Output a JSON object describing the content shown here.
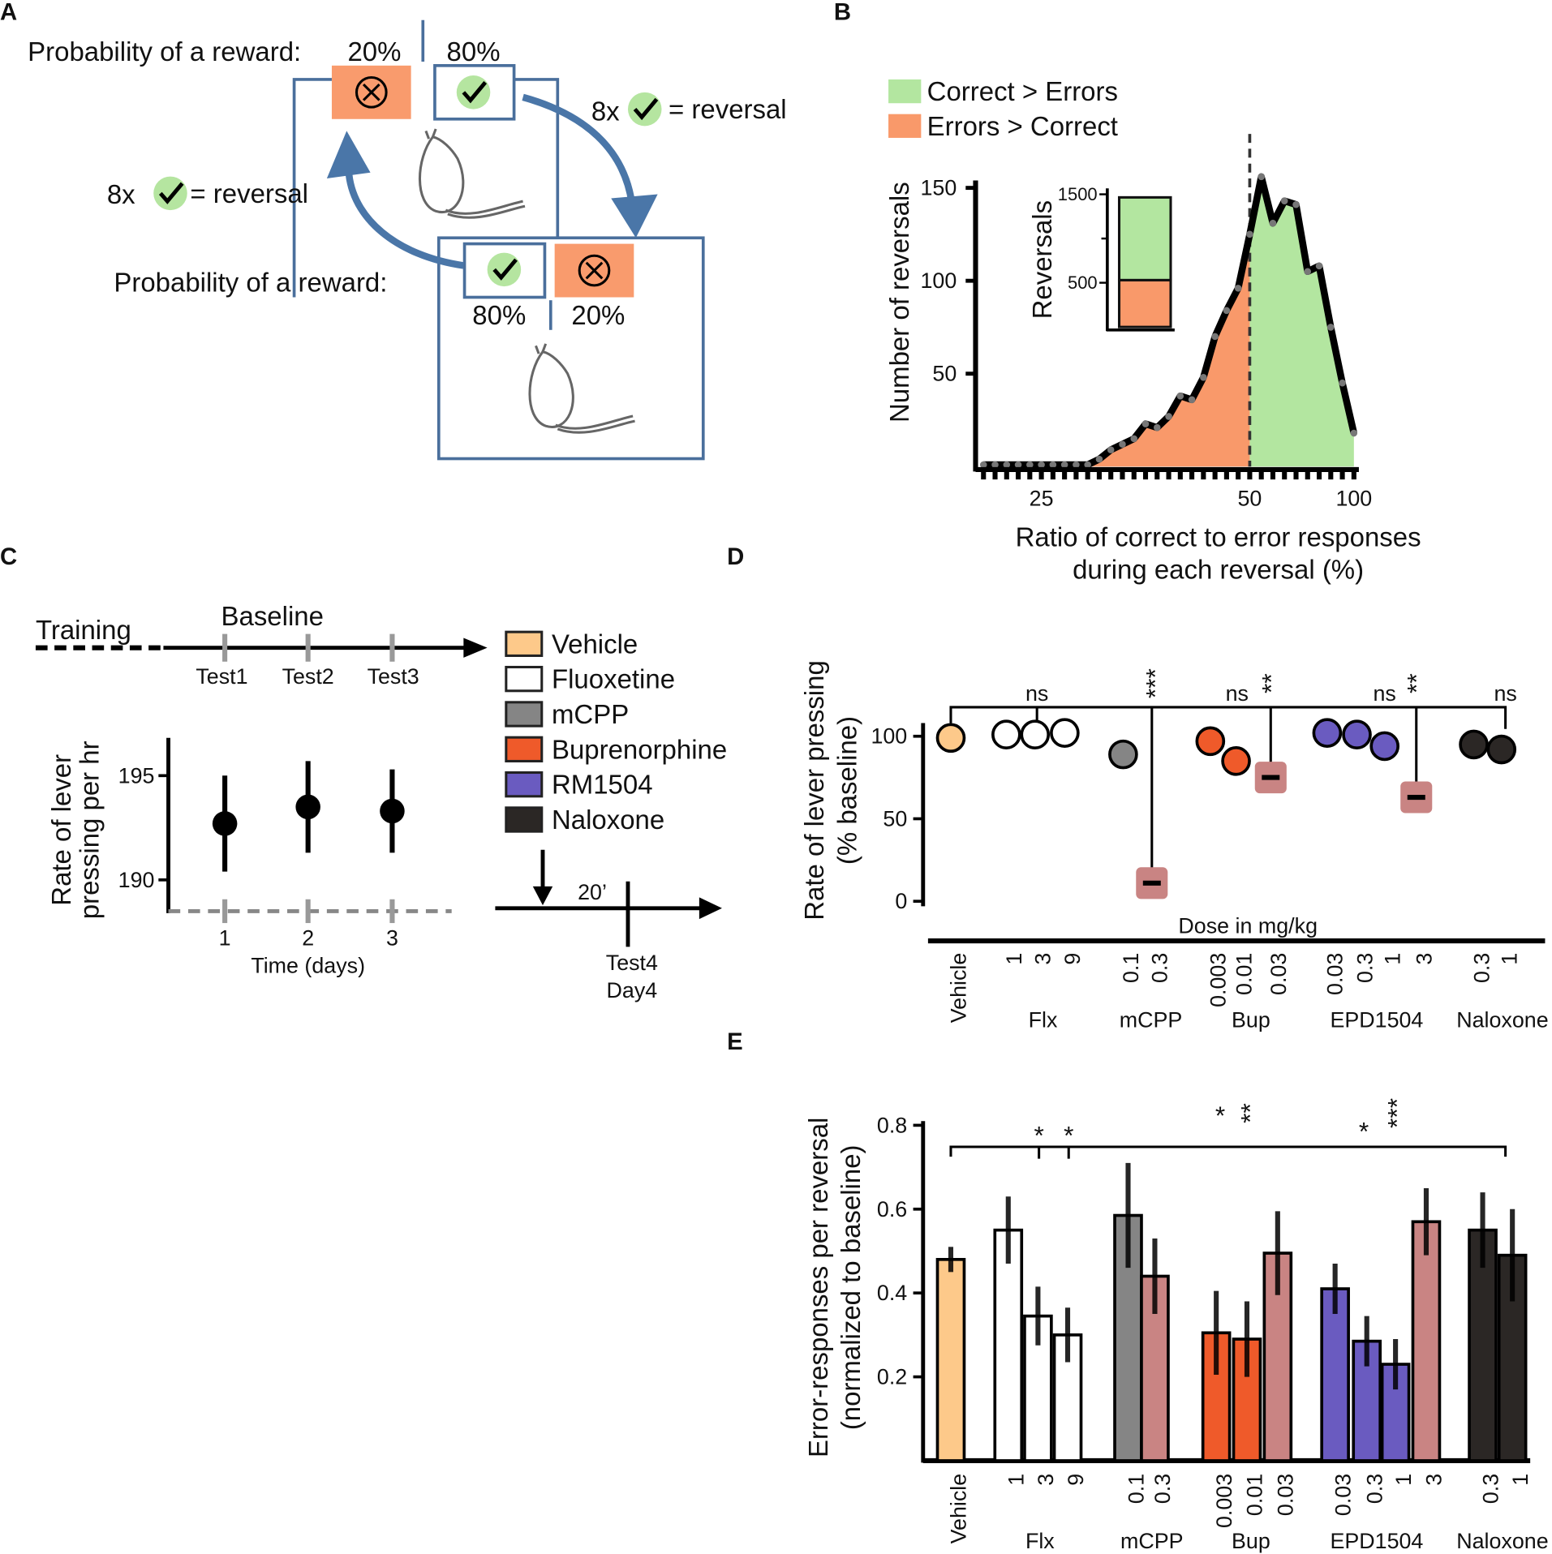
{
  "panel_labels": [
    "A",
    "B",
    "C",
    "D",
    "E"
  ],
  "diagram": {
    "probability_label": [
      "Probability of a reward:",
      "Probability of a reward:"
    ],
    "top_percents": [
      "20%",
      "80%"
    ],
    "bottom_percents": [
      "80%",
      "20%"
    ],
    "reversal_rules": [
      {
        "count": "8x",
        "text": "= reversal"
      },
      {
        "count": "8x",
        "text": "= reversal"
      }
    ]
  },
  "timeline": {
    "phases": [
      "Training",
      "Baseline"
    ],
    "tests": [
      "Test1",
      "Test2",
      "Test3"
    ],
    "delay": "20’",
    "final_test": [
      "Test4",
      "Day4"
    ]
  },
  "legend": [
    {
      "name": "Vehicle",
      "color": "#fdc98a"
    },
    {
      "name": "Fluoxetine",
      "color": "#ffffff"
    },
    {
      "name": "mCPP",
      "color": "#858585"
    },
    {
      "name": "Buprenorphine",
      "color": "#ef5a2a"
    },
    {
      "name": "RM1504",
      "color": "#6a5bc0"
    },
    {
      "name": "Naloxone",
      "color": "#2b2725"
    }
  ],
  "chart_data": [
    {
      "type": "area",
      "xlabel": [
        "Ratio of correct to error responses",
        "during each reversal (%)"
      ],
      "ylabel": "Number of reversals",
      "categories": [
        null,
        null,
        null,
        null,
        null,
        "25",
        null,
        null,
        null,
        null,
        null,
        null,
        null,
        null,
        null,
        null,
        null,
        null,
        null,
        null,
        null,
        null,
        null,
        "50",
        null,
        null,
        null,
        null,
        null,
        null,
        null,
        null,
        "100"
      ],
      "series": [
        {
          "name": "Correct > Errors",
          "color": "#b3e6a0",
          "values": [
            null,
            null,
            null,
            null,
            null,
            null,
            null,
            null,
            null,
            null,
            null,
            null,
            null,
            null,
            null,
            null,
            null,
            null,
            null,
            null,
            null,
            null,
            null,
            125,
            156,
            131,
            143,
            141,
            105,
            108,
            75,
            45,
            18
          ]
        },
        {
          "name": "Errors > Correct",
          "color": "#f9996a",
          "values": [
            1,
            1,
            1,
            1,
            1,
            1,
            1,
            1,
            1,
            1,
            4,
            9,
            12,
            15,
            23,
            21,
            27,
            38,
            36,
            48,
            70,
            84,
            96,
            125,
            null,
            null,
            null,
            null,
            null,
            null,
            null,
            null,
            null
          ]
        }
      ],
      "ylim": [
        0,
        154
      ],
      "yticks": [
        50,
        100,
        150
      ]
    },
    {
      "type": "stacked_bar",
      "ylabel": "Reversals",
      "series": [
        {
          "color": "#f9996a",
          "values": [
            530
          ]
        },
        {
          "color": "#b3e6a0",
          "values": [
            935
          ]
        }
      ],
      "ylim": [
        0,
        1500
      ],
      "yticks": [
        500,
        1500
      ],
      "minor_yticks": [
        1000
      ]
    },
    {
      "type": "errorbar_scatter",
      "xlabel": "Time (days)",
      "ylabel": [
        "Rate of lever",
        "pressing  per hr"
      ],
      "categories": [
        "1",
        "2",
        "3"
      ],
      "values": [
        192.7,
        193.5,
        193.3
      ],
      "errors": [
        2.3,
        2.2,
        2.0
      ],
      "color": "#000000",
      "ylim": [
        188.5,
        197
      ],
      "yticks": [
        190,
        195
      ]
    },
    {
      "type": "dot",
      "xlabel": "Dose in mg/kg",
      "ylabel": [
        "Rate of lever pressing",
        "(% baseline)"
      ],
      "categories": [
        "Vehicle",
        "1",
        "3",
        "9",
        "0.1",
        "0.3",
        "0.003",
        "0.01",
        "0.03",
        "0.03",
        "0.3",
        "1",
        "3",
        "0.3",
        "1"
      ],
      "groups": [
        "Flx",
        "mCPP",
        "Bup",
        "EPD1504",
        "Naloxone"
      ],
      "values": [
        99,
        101,
        101,
        102,
        89,
        11,
        97,
        85,
        75,
        102,
        101,
        94,
        63,
        95,
        92
      ],
      "markers": [
        "circle",
        "circle",
        "circle",
        "circle",
        "circle",
        "square",
        "circle",
        "circle",
        "square",
        "circle",
        "circle",
        "circle",
        "square",
        "circle",
        "circle"
      ],
      "colors": [
        "#fdc98a",
        "#ffffff",
        "#ffffff",
        "#ffffff",
        "#858585",
        "#c98483",
        "#ef5a2a",
        "#ef5a2a",
        "#c98483",
        "#6a5bc0",
        "#6a5bc0",
        "#6a5bc0",
        "#c98483",
        "#2b2725",
        "#2b2725"
      ],
      "ylim": [
        -3,
        108
      ],
      "yticks": [
        0,
        50,
        100
      ],
      "annotations": [
        "ns",
        "***",
        "ns",
        "**",
        "ns",
        "**",
        "ns"
      ]
    },
    {
      "type": "bar",
      "ylabel": [
        "Error-responses per reversal",
        "(normalized to baseline)"
      ],
      "categories": [
        "Vehicle",
        "1",
        "3",
        "9",
        "0.1",
        "0.3",
        "0.003",
        "0.01",
        "0.03",
        "0.03",
        "0.3",
        "1",
        "3",
        "0.3",
        "1"
      ],
      "groups": [
        "Flx",
        "mCPP",
        "Bup",
        "EPD1504",
        "Naloxone"
      ],
      "values": [
        0.48,
        0.55,
        0.345,
        0.3,
        0.585,
        0.44,
        0.305,
        0.29,
        0.495,
        0.41,
        0.285,
        0.23,
        0.57,
        0.55,
        0.49
      ],
      "errors": [
        0.03,
        0.08,
        0.07,
        0.065,
        0.125,
        0.09,
        0.1,
        0.09,
        0.1,
        0.06,
        0.06,
        0.06,
        0.08,
        0.09,
        0.11
      ],
      "colors": [
        "#fdc98a",
        "#ffffff",
        "#ffffff",
        "#ffffff",
        "#858585",
        "#c98483",
        "#ef5a2a",
        "#ef5a2a",
        "#c98483",
        "#6a5bc0",
        "#6a5bc0",
        "#6a5bc0",
        "#c98483",
        "#2b2725",
        "#2b2725"
      ],
      "ylim": [
        0,
        0.81
      ],
      "yticks": [
        0.2,
        0.4,
        0.6,
        0.8
      ],
      "annotations": [
        "*",
        "*",
        "*",
        "**",
        "*",
        "***"
      ]
    }
  ]
}
